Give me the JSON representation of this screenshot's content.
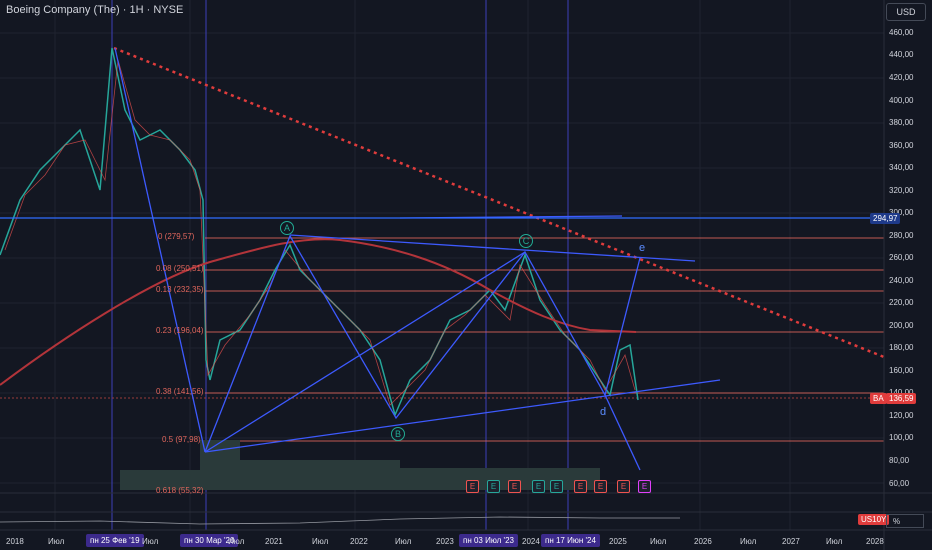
{
  "header": {
    "title": "Boeing Company (The) · 1H · NYSE",
    "currency": "USD"
  },
  "y_axis": [
    "460,00",
    "440,00",
    "420,00",
    "400,00",
    "380,00",
    "360,00",
    "340,00",
    "320,00",
    "300,00",
    "280,00",
    "260,00",
    "240,00",
    "220,00",
    "200,00",
    "180,00",
    "160,00",
    "140,00",
    "120,00",
    "100,00",
    "80,00",
    "60,00"
  ],
  "x_axis": [
    "2018",
    "Июл",
    "2019",
    "Июл",
    "2020",
    "Июл",
    "2021",
    "Июл",
    "2022",
    "Июл",
    "2023",
    "Июл",
    "2024",
    "Июл",
    "2025",
    "Июл",
    "2026",
    "Июл",
    "2027",
    "Июл",
    "2028"
  ],
  "x_highlights": [
    "пн 25 Фев '19",
    "пн 30 Мар '20",
    "пн 03 Июл '23",
    "пн 17 Июн '24"
  ],
  "price_tags": {
    "level": "294,97",
    "ticker": "BA",
    "last": "136,59"
  },
  "fib_levels": [
    {
      "label": "0 (279,57)"
    },
    {
      "label": "0.08 (250,51)"
    },
    {
      "label": "0.13 (232,35)"
    },
    {
      "label": "0.23 (196,04)"
    },
    {
      "label": "0.38 (141,56)"
    },
    {
      "label": "0.5 (97,98)"
    },
    {
      "label": "0.618 (55,32)"
    }
  ],
  "waves": {
    "A": "A",
    "B": "B",
    "C": "C",
    "d": "d",
    "e": "e"
  },
  "earnings_badges": [
    "E",
    "E",
    "E",
    "E",
    "E",
    "E",
    "E",
    "E",
    "E",
    "E"
  ],
  "sub_pane": {
    "ticker": "US10Y",
    "unit": "%"
  },
  "colors": {
    "background": "#131722",
    "up": "#26a69a",
    "down": "#ef5350",
    "pattern": "#3d5afe",
    "fib": "#e0665c",
    "ma": "#b2343a"
  }
}
